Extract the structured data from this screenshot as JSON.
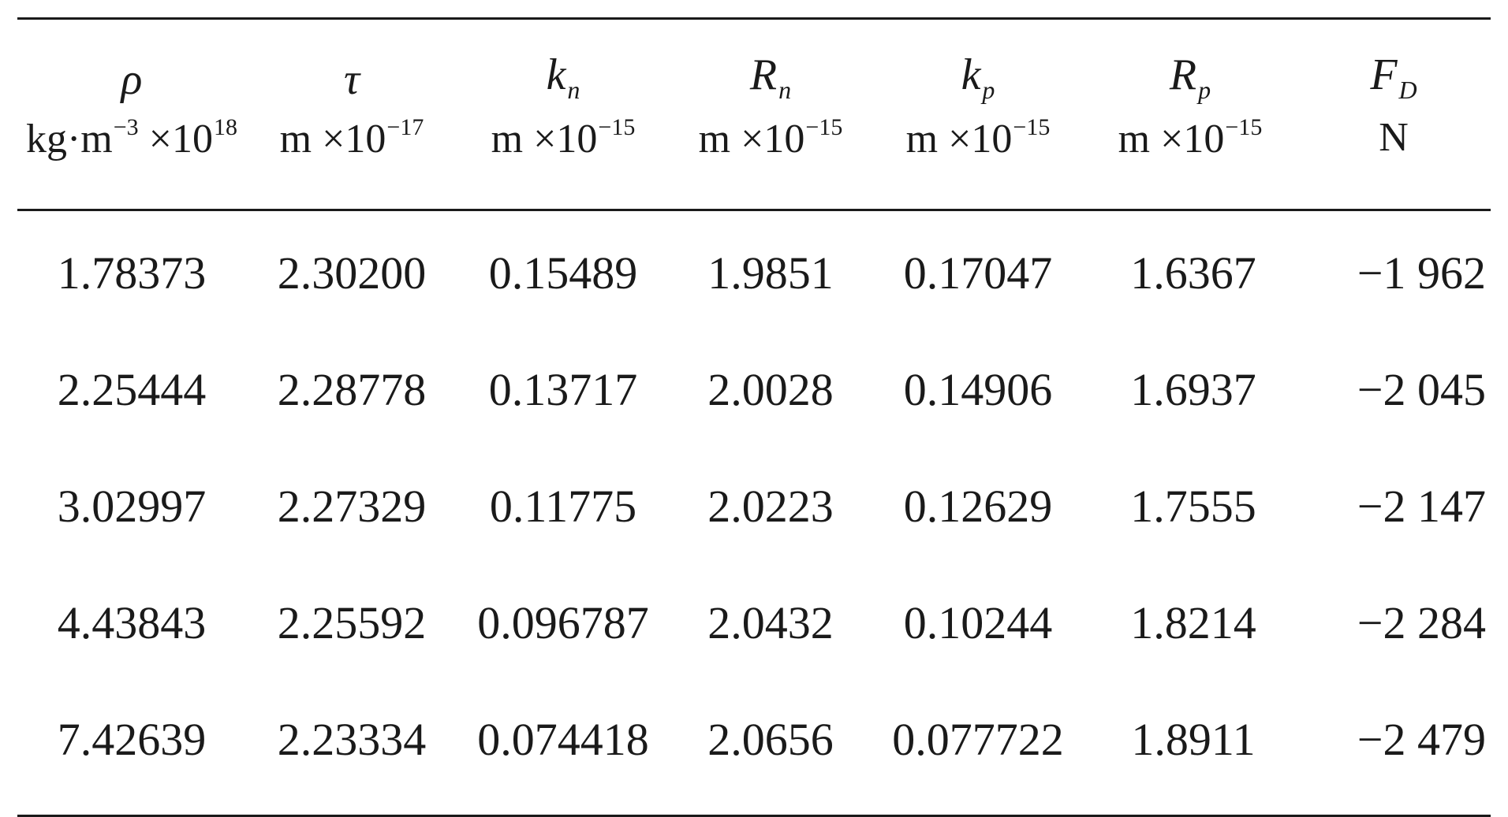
{
  "table": {
    "columns": [
      {
        "symbol": "ρ",
        "sub": "",
        "unit_base": "kg·m",
        "unit_exp": "−3",
        "unit_mult": " ×10",
        "unit_mult_exp": "18"
      },
      {
        "symbol": "τ",
        "sub": "",
        "unit_base": "m",
        "unit_exp": "",
        "unit_mult": " ×10",
        "unit_mult_exp": "−17"
      },
      {
        "symbol": "k",
        "sub": "n",
        "unit_base": "m",
        "unit_exp": "",
        "unit_mult": " ×10",
        "unit_mult_exp": "−15"
      },
      {
        "symbol": "R",
        "sub": "n",
        "unit_base": "m",
        "unit_exp": "",
        "unit_mult": " ×10",
        "unit_mult_exp": "−15"
      },
      {
        "symbol": "k",
        "sub": "p",
        "unit_base": "m",
        "unit_exp": "",
        "unit_mult": " ×10",
        "unit_mult_exp": "−15"
      },
      {
        "symbol": "R",
        "sub": "p",
        "unit_base": "m",
        "unit_exp": "",
        "unit_mult": " ×10",
        "unit_mult_exp": "−15"
      },
      {
        "symbol": "F",
        "sub": "D",
        "unit_base": "N",
        "unit_exp": "",
        "unit_mult": "",
        "unit_mult_exp": ""
      }
    ],
    "rows": [
      [
        "1.78373",
        "2.30200",
        "0.15489",
        "1.9851",
        "0.17047",
        "1.6367",
        "−1 962"
      ],
      [
        "2.25444",
        "2.28778",
        "0.13717",
        "2.0028",
        "0.14906",
        "1.6937",
        "−2 045"
      ],
      [
        "3.02997",
        "2.27329",
        "0.11775",
        "2.0223",
        "0.12629",
        "1.7555",
        "−2 147"
      ],
      [
        "4.43843",
        "2.25592",
        "0.096787",
        "2.0432",
        "0.10244",
        "1.8214",
        "−2 284"
      ],
      [
        "7.42639",
        "2.23334",
        "0.074418",
        "2.0656",
        "0.077722",
        "1.8911",
        "−2 479"
      ]
    ]
  }
}
